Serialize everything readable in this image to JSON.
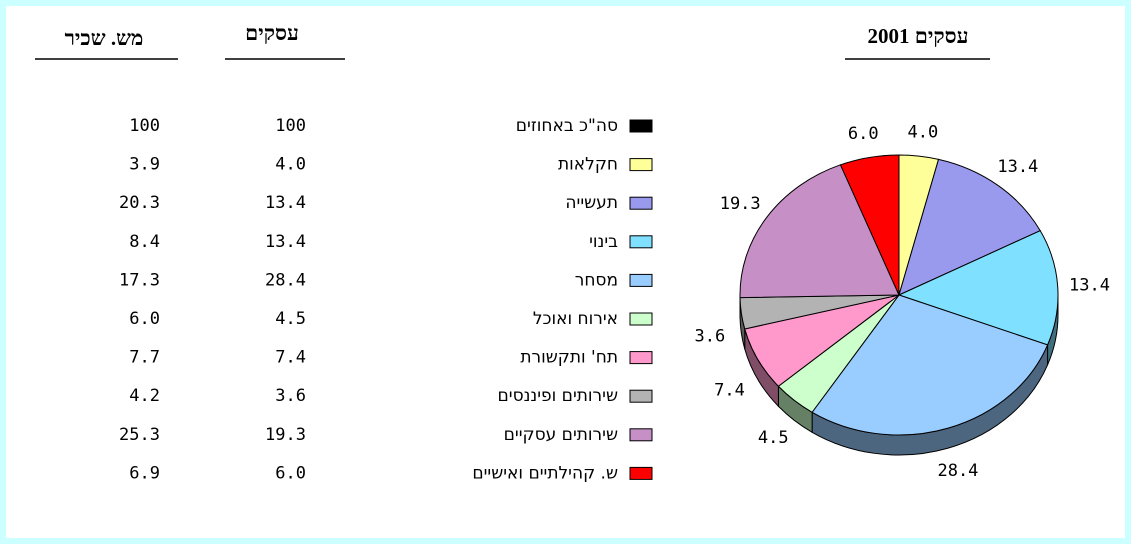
{
  "chart_data": {
    "type": "pie",
    "title": "עסקים 2001",
    "categories": [
      "חקלאות",
      "תעשייה",
      "בינוי",
      "מסחר",
      "אירוח ואוכל",
      "תח' ותקשורת",
      "שירותים ופיננסים",
      "שירותים עסקיים",
      "ש. קהילתיים ואישיים"
    ],
    "values": [
      4.0,
      13.4,
      13.4,
      28.4,
      4.5,
      7.4,
      3.6,
      19.3,
      6.0
    ],
    "value_labels": [
      "4.0",
      "13.4",
      "13.4",
      "28.4",
      "4.5",
      "7.4",
      "3.6",
      "19.3",
      "6.0"
    ],
    "colors": [
      "#ffff99",
      "#9999ee",
      "#80e0ff",
      "#99ccff",
      "#ccffcc",
      "#ff99cc",
      "#b3b3b3",
      "#c690c6",
      "#ff0000"
    ]
  },
  "table": {
    "columns": [
      "עסקים",
      "מש. שכיר"
    ],
    "total_label": "סה\"כ באחוזים",
    "total_color": "#000000",
    "total_values": [
      "100",
      "100"
    ],
    "employees": [
      "3.9",
      "20.3",
      "8.4",
      "17.3",
      "6.0",
      "7.7",
      "4.2",
      "25.3",
      "6.9"
    ]
  }
}
